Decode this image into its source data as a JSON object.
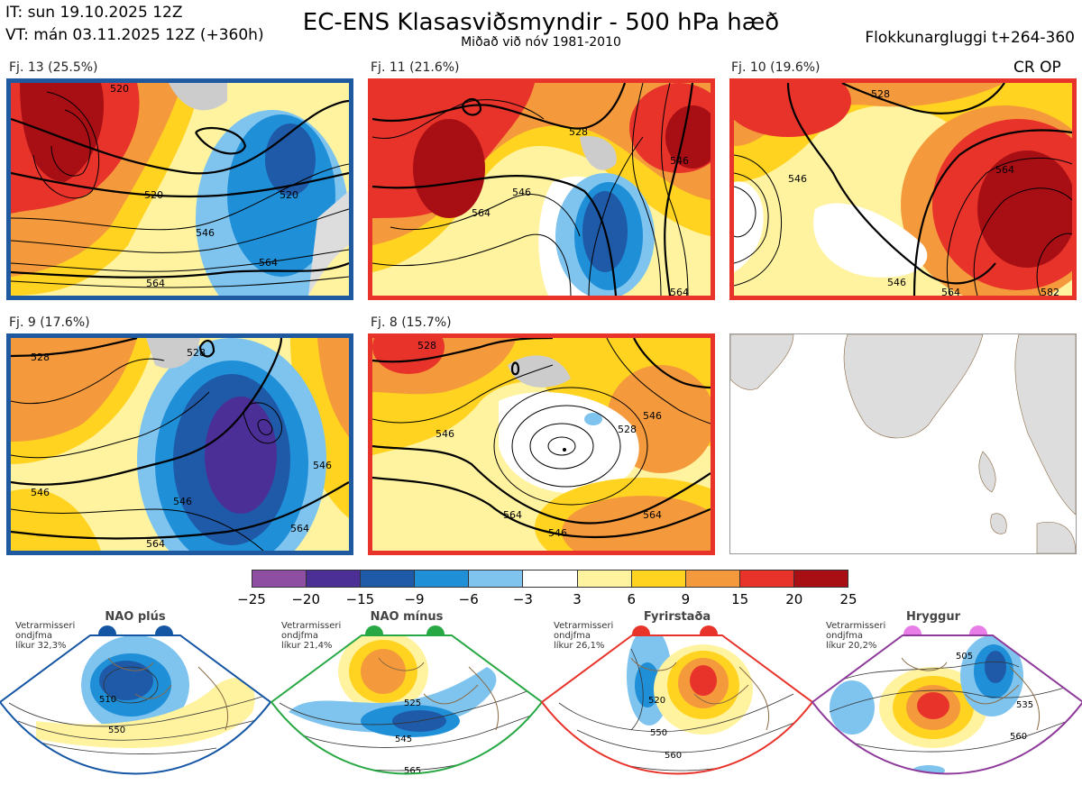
{
  "header": {
    "it_line": "IT: sun 19.10.2025 12Z",
    "vt_line": "VT: mán 03.11.2025 12Z  (+360h)",
    "title": "EC-ENS Klasasviðsmyndir - 500 hPa hæð",
    "subtitle": "Miðað við nóv 1981-2010",
    "window": "Flokkunargluggi t+264-360"
  },
  "crop_label": "CR OP",
  "clusters": [
    {
      "label": "Fj. 13 (25.5%)",
      "border_color": "#1f5aa0",
      "contours": [
        "520",
        "520",
        "520",
        "546",
        "564",
        "564"
      ]
    },
    {
      "label": "Fj. 11 (21.6%)",
      "border_color": "#e8332a",
      "contours": [
        "528",
        "546",
        "564",
        "546",
        "564"
      ]
    },
    {
      "label": "Fj. 10 (19.6%)",
      "border_color": "#e8332a",
      "contours": [
        "528",
        "546",
        "564",
        "546",
        "564",
        "582"
      ]
    },
    {
      "label": "Fj. 9 (17.6%)",
      "border_color": "#1f5aa0",
      "contours": [
        "528",
        "528",
        "546",
        "546",
        "564",
        "546",
        "564"
      ]
    },
    {
      "label": "Fj. 8 (15.7%)",
      "border_color": "#e8332a",
      "contours": [
        "528",
        "546",
        "528",
        "546",
        "564",
        "546",
        "564"
      ]
    }
  ],
  "colorbar": {
    "ticks": [
      "−25",
      "−20",
      "−15",
      "−9",
      "−6",
      "−3",
      "3",
      "6",
      "9",
      "15",
      "20",
      "25"
    ],
    "colors": [
      "#8e4fa3",
      "#4b2f96",
      "#1e5aa8",
      "#1f8fd8",
      "#7fc4ee",
      "#ffffff",
      "#fff3a0",
      "#ffd320",
      "#f59a3c",
      "#e8332a",
      "#a80f14"
    ]
  },
  "regimes": [
    {
      "name": "NAO plús",
      "info": [
        "Vetrarmisseri",
        "ondjfma",
        "líkur 32,3%"
      ],
      "dot_color": "#1455a4",
      "frame_color": "#1455a4",
      "contours": [
        "510",
        "550"
      ]
    },
    {
      "name": "NAO mínus",
      "info": [
        "Vetrarmisseri",
        "ondjfma",
        "líkur 21,4%"
      ],
      "dot_color": "#27a844",
      "frame_color": "#27a844",
      "contours": [
        "525",
        "545",
        "565"
      ]
    },
    {
      "name": "Fyrirstaða",
      "info": [
        "Vetrarmisseri",
        "ondjfma",
        "líkur 26,1%"
      ],
      "dot_color": "#e8332a",
      "frame_color": "#e8332a",
      "contours": [
        "520",
        "550",
        "560"
      ]
    },
    {
      "name": "Hryggur",
      "info": [
        "Vetrarmisseri",
        "ondjfma",
        "líkur 20,2%"
      ],
      "dot_color": "#e87de8",
      "frame_color": "#8e3a9a",
      "contours": [
        "505",
        "535",
        "560"
      ]
    }
  ]
}
